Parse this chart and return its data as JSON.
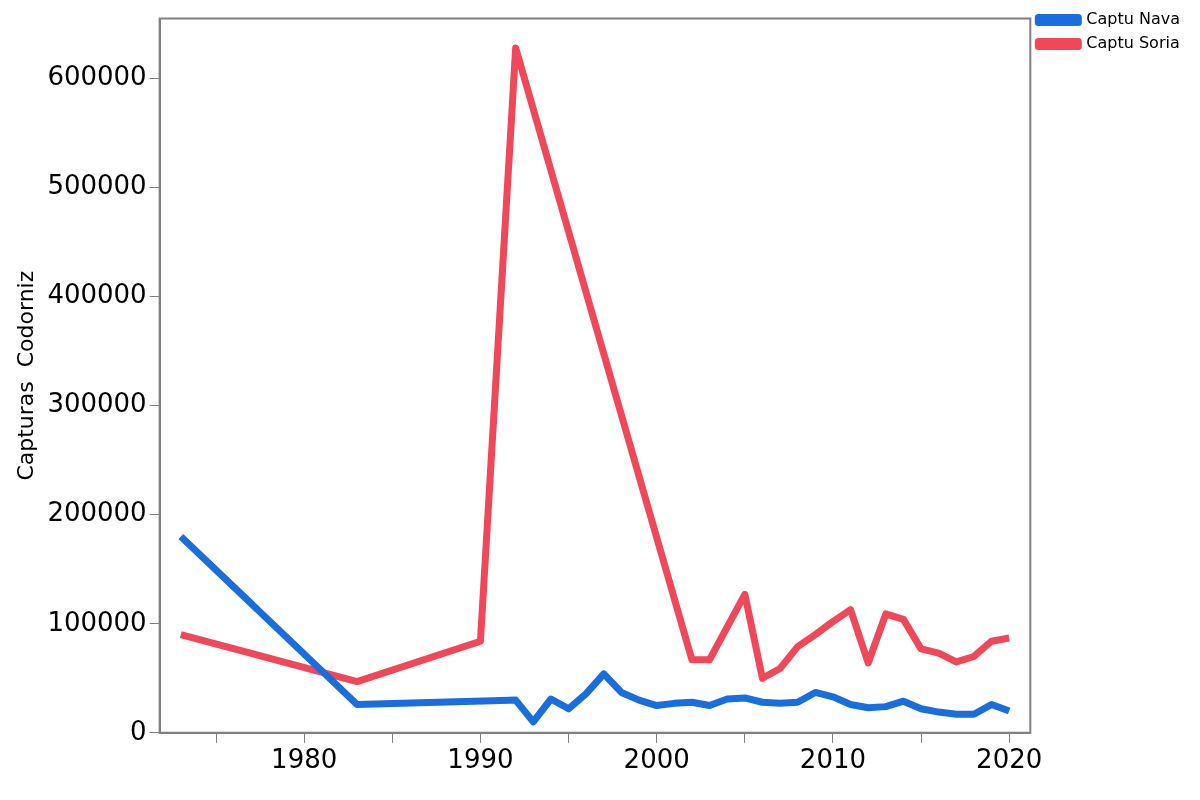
{
  "chart_data": {
    "type": "line",
    "ylabel": "Capturas  Codorniz",
    "xlim": [
      1971.8,
      2021.2
    ],
    "ylim": [
      0,
      655000
    ],
    "xticks": [
      {
        "value": 1975,
        "label": null
      },
      1980,
      {
        "value": 1985,
        "label": null
      },
      1990,
      {
        "value": 1995,
        "label": null
      },
      2000,
      {
        "value": 2005,
        "label": null
      },
      2010,
      {
        "value": 2015,
        "label": null
      },
      2020
    ],
    "yticks": [
      0,
      100000,
      200000,
      300000,
      400000,
      500000,
      600000
    ],
    "grid": false,
    "legend": "top right",
    "marker": "none",
    "line_style": "solid",
    "series": [
      {
        "name": "Captu Nava",
        "color": "#1a6ddc",
        "x": [
          1973,
          1983,
          1992,
          1993,
          1994,
          1995,
          1996,
          1997,
          1998,
          1999,
          2000,
          2001,
          2002,
          2003,
          2004,
          2005,
          2006,
          2007,
          2008,
          2009,
          2010,
          2011,
          2012,
          2013,
          2014,
          2015,
          2016,
          2017,
          2018,
          2019,
          2020
        ],
        "values": [
          180000,
          26000,
          30000,
          10000,
          31000,
          22000,
          36000,
          54000,
          37000,
          30000,
          25000,
          27000,
          28000,
          25000,
          31000,
          32000,
          28000,
          27000,
          28000,
          37000,
          33000,
          26000,
          23000,
          24000,
          29000,
          22000,
          19000,
          17000,
          17000,
          26000,
          20000
        ]
      },
      {
        "name": "Captu Soria",
        "color": "#f04858",
        "x": [
          1973,
          1983,
          1990,
          1992,
          2002,
          2003,
          2005,
          2006,
          2007,
          2008,
          2009,
          2010,
          2011,
          2012,
          2013,
          2014,
          2015,
          2016,
          2017,
          2018,
          2019,
          2020
        ],
        "values": [
          90000,
          47000,
          84000,
          628000,
          67000,
          67000,
          127000,
          50000,
          59000,
          79000,
          90000,
          102000,
          113000,
          64000,
          109000,
          104000,
          77000,
          73000,
          65000,
          70000,
          84000,
          87000
        ]
      }
    ]
  }
}
